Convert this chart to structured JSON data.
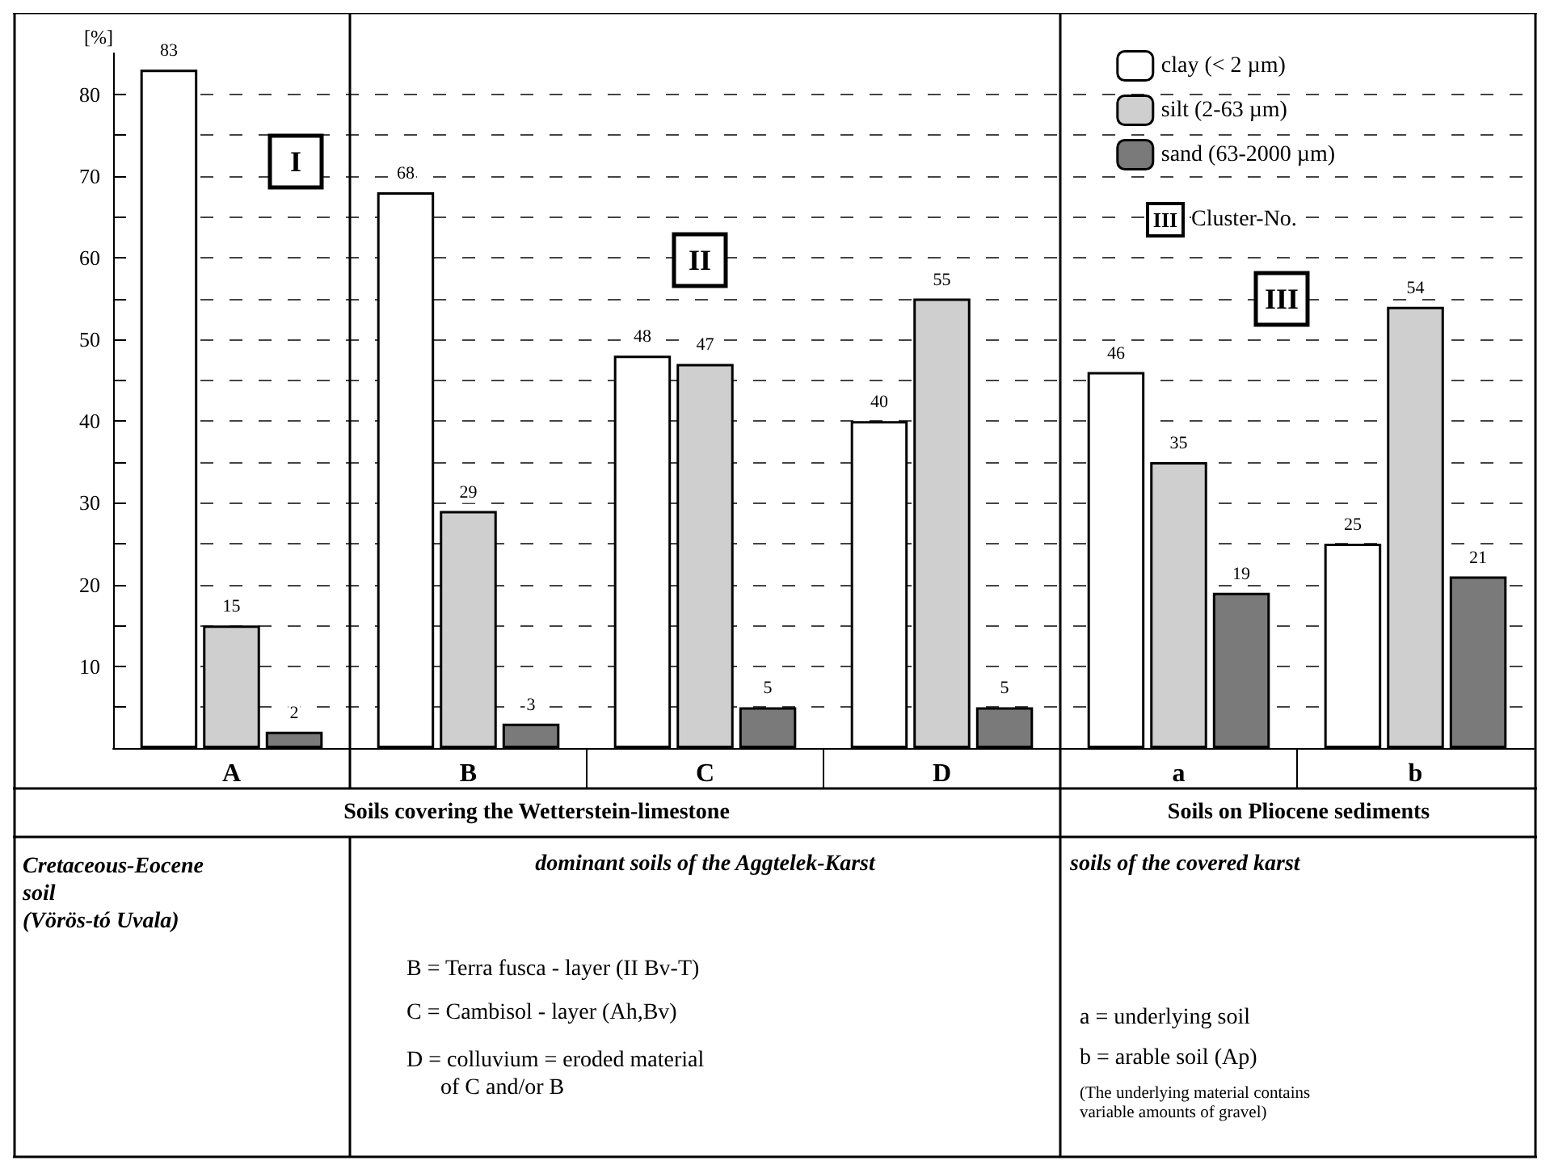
{
  "chart_data": {
    "type": "bar",
    "ylabel": "[%]",
    "categories": [
      "A",
      "B",
      "C",
      "D",
      "a",
      "b"
    ],
    "series": [
      {
        "name": "clay (< 2 µm)",
        "color": "#ffffff",
        "values": [
          83,
          68,
          48,
          40,
          46,
          25
        ]
      },
      {
        "name": "silt (2-63 µm)",
        "color": "#cfcfcf",
        "values": [
          15,
          29,
          47,
          55,
          35,
          54
        ]
      },
      {
        "name": "sand (63-2000 µm)",
        "color": "#7a7a7a",
        "values": [
          2,
          3,
          5,
          5,
          19,
          21
        ]
      }
    ],
    "ylim": [
      0,
      85
    ],
    "yticks": [
      {
        "value": 5,
        "label": null
      },
      10,
      {
        "value": 15,
        "label": null
      },
      20,
      {
        "value": 25,
        "label": null
      },
      30,
      {
        "value": 35,
        "label": null
      },
      40,
      {
        "value": 45,
        "label": null
      },
      50,
      {
        "value": 55,
        "label": null
      },
      60,
      {
        "value": 65,
        "label": null
      },
      70,
      {
        "value": 75,
        "label": null
      },
      80
    ],
    "grid": "y",
    "legend": "top right",
    "data_labels": true,
    "annotations": [
      "I",
      "II",
      "III",
      "III",
      "Cluster-No.",
      "Soils covering the Wetterstein-limestone",
      "Soils on Pliocene sediments",
      "Cretaceous-Eocene\nsoil\n(Vörös-tó Uvala)",
      "dominant soils of the Aggtelek-Karst",
      "B = Terra fusca - layer (II Bv-T)",
      "C = Cambisol - layer (Ah,Bv)",
      "D = colluvium = eroded material\n      of C and/or B",
      "soils of the covered karst",
      "a = underlying soil",
      "b = arable soil (Ap)",
      "(The underlying material contains\nvariable amounts of gravel)"
    ]
  }
}
